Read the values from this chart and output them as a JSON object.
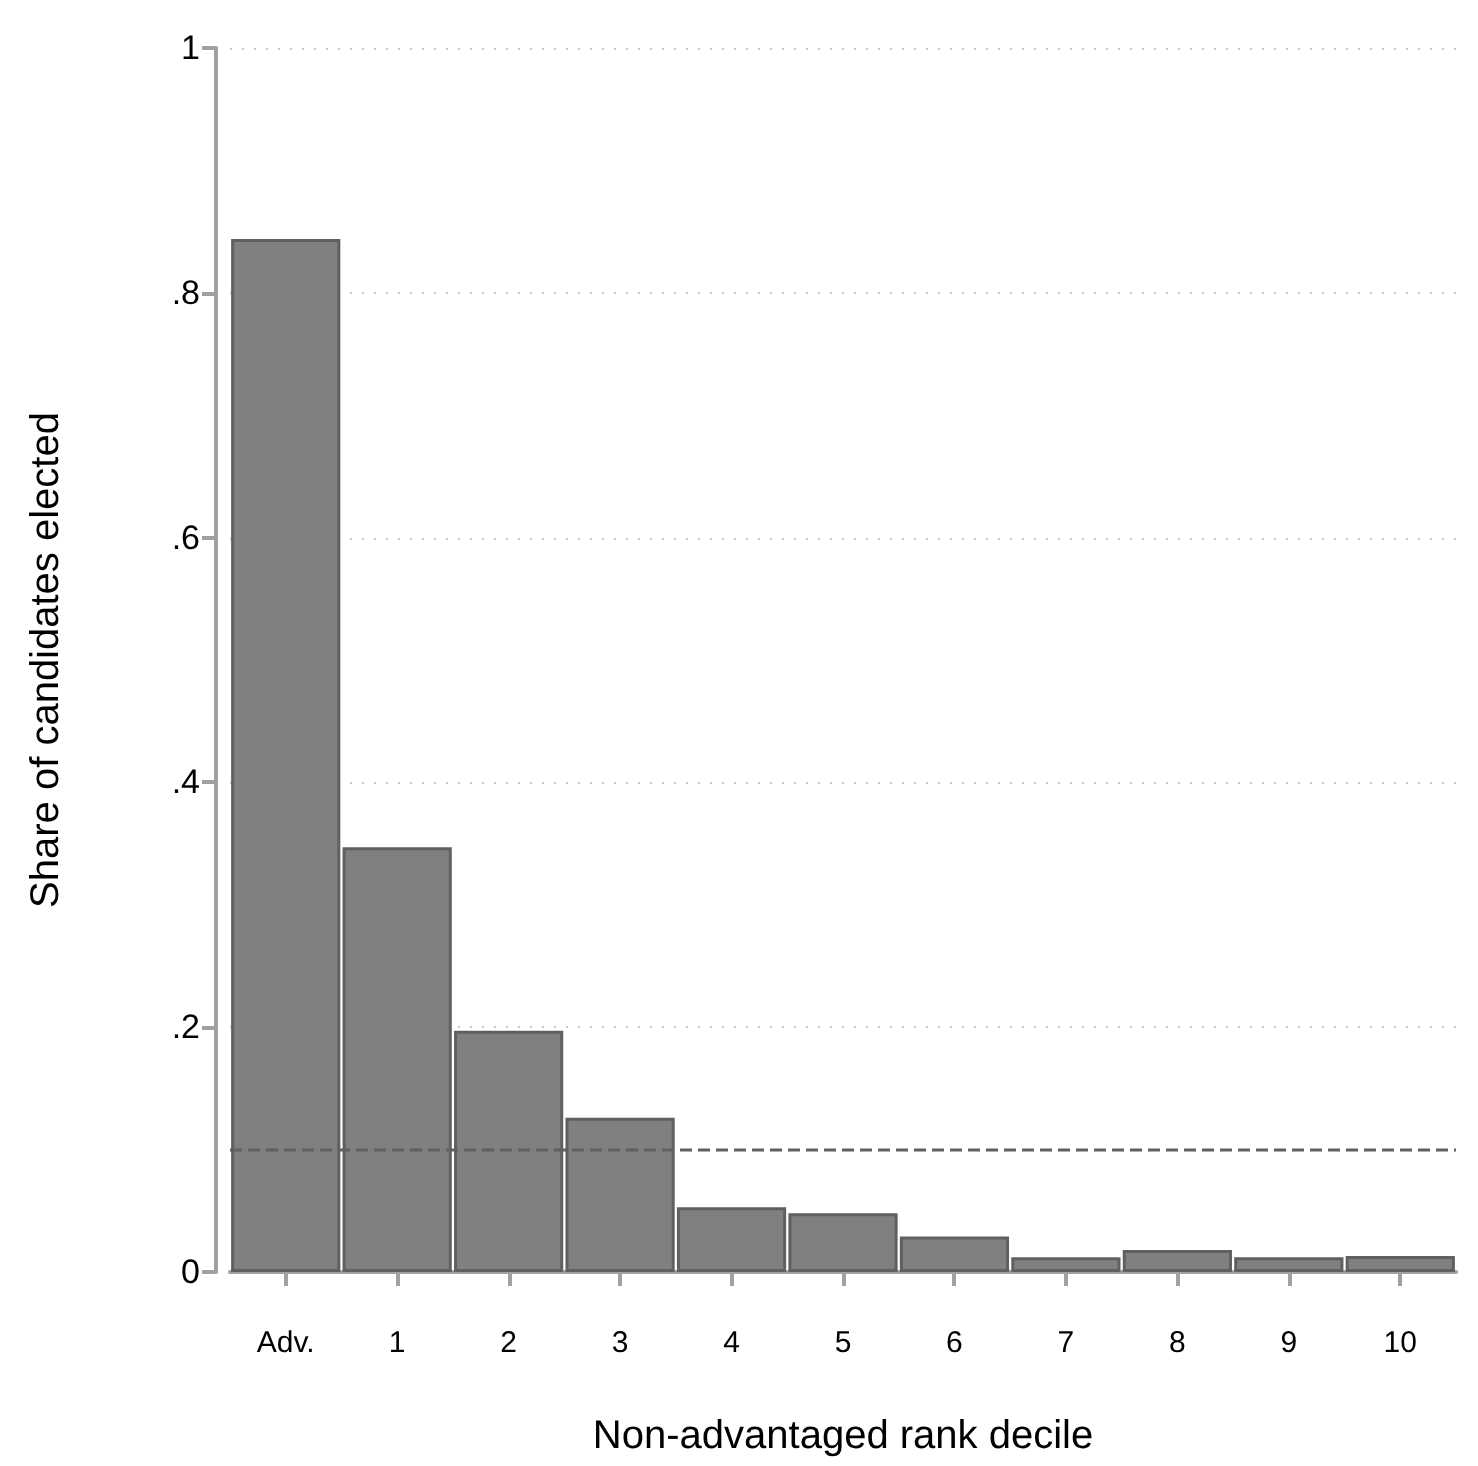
{
  "chart_data": {
    "type": "bar",
    "xlabel": "Non-advantaged rank decile",
    "ylabel": "Share of candidates elected",
    "categories": [
      "Adv.",
      "1",
      "2",
      "3",
      "4",
      "5",
      "6",
      "7",
      "8",
      "9",
      "10"
    ],
    "values": [
      0.844,
      0.347,
      0.197,
      0.126,
      0.053,
      0.048,
      0.029,
      0.012,
      0.018,
      0.012,
      0.013
    ],
    "color": "#808080",
    "ylim": [
      0,
      1
    ],
    "yticks": [
      {
        "value": 0,
        "label": "0"
      },
      {
        "value": 0.2,
        "label": ".2"
      },
      {
        "value": 0.4,
        "label": ".4"
      },
      {
        "value": 0.6,
        "label": ".6"
      },
      {
        "value": 0.8,
        "label": ".8"
      },
      {
        "value": 1,
        "label": "1"
      }
    ],
    "grid": "y",
    "ref_lines": [
      {
        "axis": "y",
        "value": 0.1,
        "color": "#606060",
        "line_style": "dashed"
      }
    ]
  }
}
